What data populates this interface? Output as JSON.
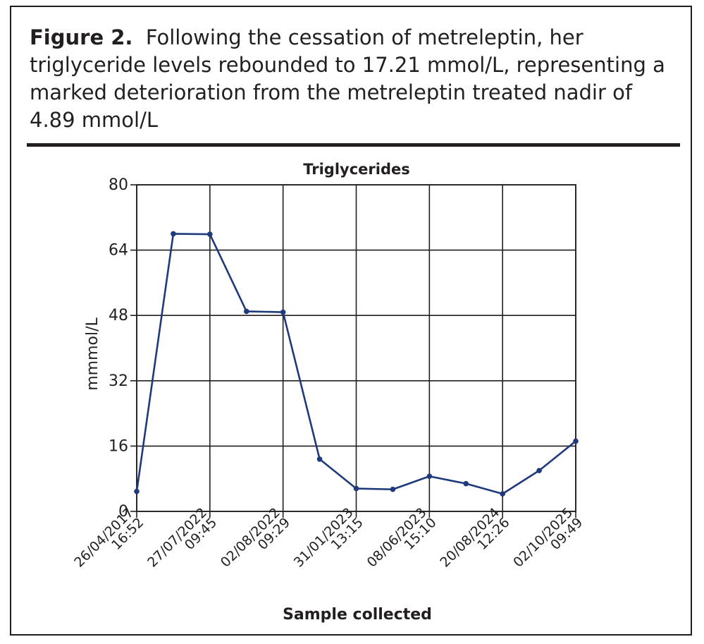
{
  "caption": {
    "lead": "Figure 2.",
    "text": "Following the cessation of metreleptin, her triglyceride levels rebounded to 17.21 mmol/L, representing a marked deterioration from the metreleptin treated nadir of 4.89 mmol/L"
  },
  "chart_data": {
    "type": "line",
    "title": "Triglycerides",
    "xlabel": "Sample collected",
    "ylabel": "mmmol/L",
    "ylim": [
      0,
      80
    ],
    "yticks": [
      0,
      16,
      32,
      48,
      64,
      80
    ],
    "grid": true,
    "line_color": "#1f3a7a",
    "x_tick_labels": [
      {
        "date": "26/04/2017",
        "time": "16:52"
      },
      {
        "date": "27/07/2022",
        "time": "09:45"
      },
      {
        "date": "02/08/2022",
        "time": "09:29"
      },
      {
        "date": "31/01/2023",
        "time": "13:15"
      },
      {
        "date": "08/06/2023",
        "time": "15:10"
      },
      {
        "date": "20/08/2024",
        "time": "12:26"
      },
      {
        "date": "02/10/2025",
        "time": "09:49"
      }
    ],
    "series": [
      {
        "values": [
          4.89,
          68.0,
          67.9,
          49.0,
          48.8,
          12.8,
          5.6,
          5.4,
          8.6,
          6.8,
          4.3,
          10.0,
          17.21
        ]
      }
    ]
  }
}
